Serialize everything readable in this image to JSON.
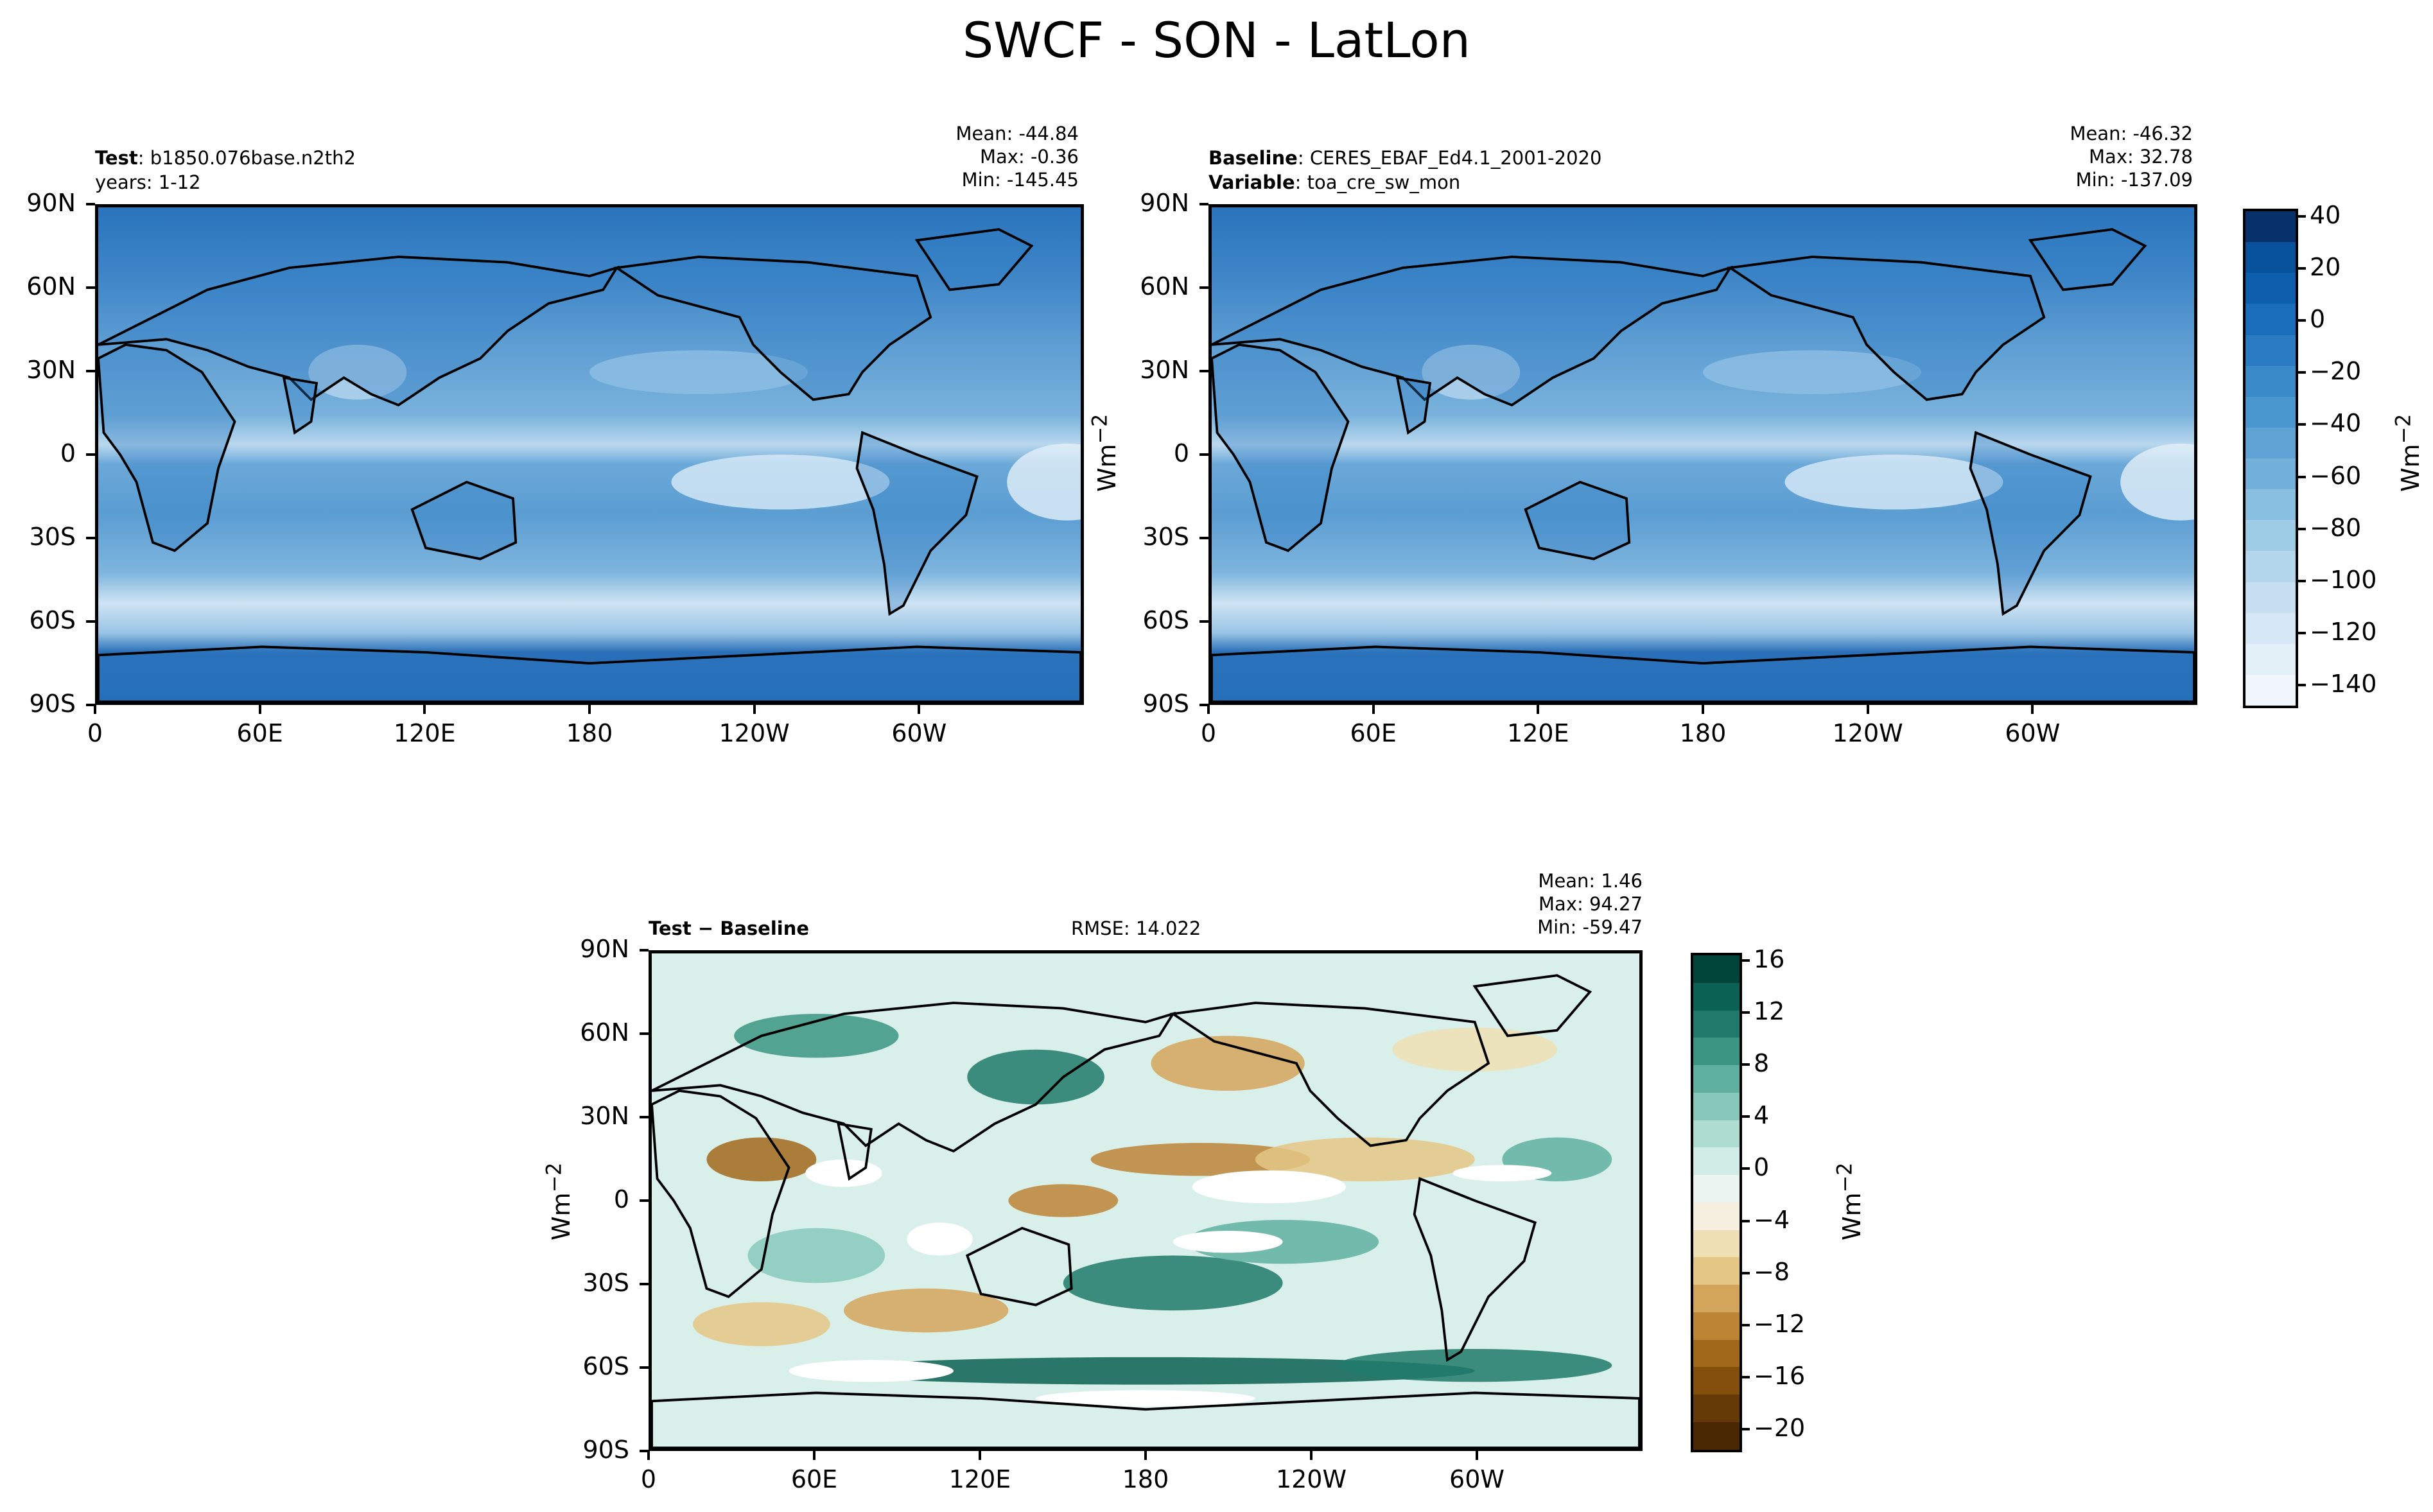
{
  "figure_title": "SWCF - SON - LatLon",
  "panels": [
    {
      "id": "test",
      "label_bold": "Test",
      "label_text": "b1850.076base.n2th2",
      "sub_label": "years: 1-12",
      "stats": {
        "mean": "Mean: -44.84",
        "max": "Max: -0.36",
        "min": "Min: -145.45"
      },
      "y_unit": "Wm",
      "y_unit_sup": "−2"
    },
    {
      "id": "baseline",
      "label_bold": "Baseline",
      "label_text": "CERES_EBAF_Ed4.1_2001-2020",
      "sub_label_bold": "Variable",
      "sub_label_text": "toa_cre_sw_mon",
      "stats": {
        "mean": "Mean: -46.32",
        "max": "Max: 32.78",
        "min": "Min: -137.09"
      }
    },
    {
      "id": "diff",
      "label_bold": "Test − Baseline",
      "rmse": "RMSE: 14.022",
      "stats": {
        "mean": "Mean:  1.46",
        "max": "Max: 94.27",
        "min": "Min: -59.47"
      },
      "y_unit": "Wm",
      "y_unit_sup": "−2"
    }
  ],
  "lat_ticks": [
    "90N",
    "60N",
    "30N",
    "0",
    "30S",
    "60S",
    "90S"
  ],
  "lon_ticks": [
    "0",
    "60E",
    "120E",
    "180",
    "120W",
    "60W"
  ],
  "colorbar_main": {
    "ticks": [
      "40",
      "20",
      "0",
      "−20",
      "−40",
      "−60",
      "−80",
      "−100",
      "−120",
      "−140"
    ],
    "unit": "Wm",
    "unit_sup": "−2",
    "colors": [
      "#08306b",
      "#08519c",
      "#0d5fad",
      "#1a6dba",
      "#2a7bc2",
      "#3a89c9",
      "#4a96cf",
      "#5ea3d4",
      "#73b1da",
      "#89bfe0",
      "#9ecbe6",
      "#b3d6ec",
      "#c6e0f1",
      "#d6e8f5",
      "#e4f0f8",
      "#f0f6fc"
    ]
  },
  "colorbar_diff": {
    "ticks": [
      "16",
      "12",
      "8",
      "4",
      "0",
      "−4",
      "−8",
      "−12",
      "−16",
      "−20"
    ],
    "unit": "Wm",
    "unit_sup": "−2",
    "colors": [
      "#01453a",
      "#0b6154",
      "#207a6b",
      "#3b9583",
      "#5fb0a0",
      "#86c9bb",
      "#aedcd1",
      "#d1ece6",
      "#eaf5f1",
      "#f7f0e0",
      "#efdfb4",
      "#e4c785",
      "#d3a55a",
      "#bc8536",
      "#a1681c",
      "#844f0d",
      "#663a06",
      "#4a2803"
    ]
  },
  "chart_data": [
    {
      "type": "heatmap",
      "title": "Test: b1850.076base.n2th2",
      "subtitle": "years: 1-12",
      "xlabel": "",
      "ylabel": "Wm−2",
      "x_ticks": [
        "0",
        "60E",
        "120E",
        "180",
        "120W",
        "60W"
      ],
      "y_ticks": [
        "90N",
        "60N",
        "30N",
        "0",
        "30S",
        "60S",
        "90S"
      ],
      "xlim": [
        0,
        360
      ],
      "ylim": [
        -90,
        90
      ],
      "stats": {
        "mean": -44.84,
        "max": -0.36,
        "min": -145.45
      },
      "colorbar_range": [
        -150,
        40
      ]
    },
    {
      "type": "heatmap",
      "title": "Baseline: CERES_EBAF_Ed4.1_2001-2020",
      "subtitle": "Variable: toa_cre_sw_mon",
      "x_ticks": [
        "0",
        "60E",
        "120E",
        "180",
        "120W",
        "60W"
      ],
      "y_ticks": [
        "90N",
        "60N",
        "30N",
        "0",
        "30S",
        "60S",
        "90S"
      ],
      "xlim": [
        0,
        360
      ],
      "ylim": [
        -90,
        90
      ],
      "stats": {
        "mean": -46.32,
        "max": 32.78,
        "min": -137.09
      },
      "colorbar_range": [
        -150,
        40
      ]
    },
    {
      "type": "heatmap",
      "title": "Test − Baseline",
      "xlabel": "",
      "ylabel": "Wm−2",
      "x_ticks": [
        "0",
        "60E",
        "120E",
        "180",
        "120W",
        "60W"
      ],
      "y_ticks": [
        "90N",
        "60N",
        "30N",
        "0",
        "30S",
        "60S",
        "90S"
      ],
      "xlim": [
        0,
        360
      ],
      "ylim": [
        -90,
        90
      ],
      "rmse": 14.022,
      "stats": {
        "mean": 1.46,
        "max": 94.27,
        "min": -59.47
      },
      "colorbar_range": [
        -20,
        18
      ]
    }
  ]
}
